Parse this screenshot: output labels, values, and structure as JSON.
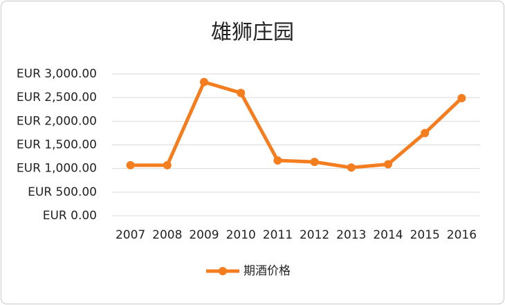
{
  "chart_data": {
    "type": "line",
    "title": "雄狮庄园",
    "categories": [
      "2007",
      "2008",
      "2009",
      "2010",
      "2011",
      "2012",
      "2013",
      "2014",
      "2015",
      "2016"
    ],
    "series": [
      {
        "name": "期酒价格",
        "color": "#f47d20",
        "values": [
          1070,
          1070,
          2830,
          2600,
          1170,
          1140,
          1020,
          1090,
          1750,
          2490
        ]
      }
    ],
    "ylim": [
      0,
      3000
    ],
    "yticks": [
      {
        "value": 0,
        "label": "EUR 0.00"
      },
      {
        "value": 500,
        "label": "EUR 500.00"
      },
      {
        "value": 1000,
        "label": "EUR 1,000.00"
      },
      {
        "value": 1500,
        "label": "EUR 1,500.00"
      },
      {
        "value": 2000,
        "label": "EUR 2,000.00"
      },
      {
        "value": 2500,
        "label": "EUR 2,500.00"
      },
      {
        "value": 3000,
        "label": "EUR 3,000.00"
      }
    ],
    "grid": true,
    "legend": "bottom"
  }
}
